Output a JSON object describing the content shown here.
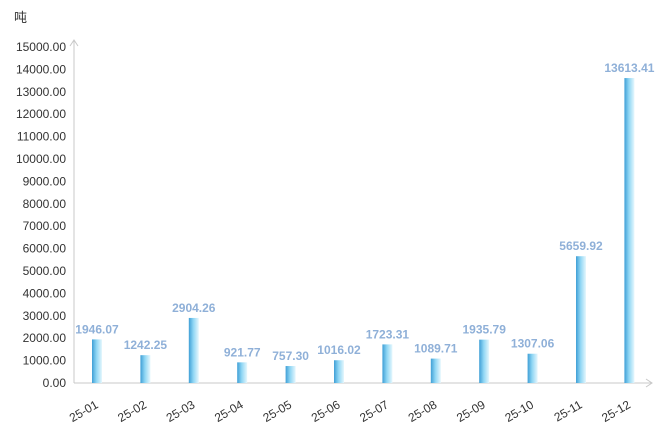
{
  "chart_data": {
    "type": "bar",
    "unit_label": "吨",
    "categories": [
      "25-01",
      "25-02",
      "25-03",
      "25-04",
      "25-05",
      "25-06",
      "25-07",
      "25-08",
      "25-09",
      "25-10",
      "25-11",
      "25-12"
    ],
    "values": [
      1946.07,
      1242.25,
      2904.26,
      921.77,
      757.3,
      1016.02,
      1723.31,
      1089.71,
      1935.79,
      1307.06,
      5659.92,
      13613.41
    ],
    "data_labels": [
      "1946.07",
      "1242.25",
      "2904.26",
      "921.77",
      "757.30",
      "1016.02",
      "1723.31",
      "1089.71",
      "1935.79",
      "1307.06",
      "5659.92",
      "13613.41"
    ],
    "ylim": [
      0,
      15000
    ],
    "yticks": [
      "0.00",
      "1000.00",
      "2000.00",
      "3000.00",
      "4000.00",
      "5000.00",
      "6000.00",
      "7000.00",
      "8000.00",
      "9000.00",
      "10000.00",
      "11000.00",
      "12000.00",
      "13000.00",
      "14000.00",
      "15000.00"
    ],
    "ytick_values": [
      0,
      1000,
      2000,
      3000,
      4000,
      5000,
      6000,
      7000,
      8000,
      9000,
      10000,
      11000,
      12000,
      13000,
      14000,
      15000
    ],
    "grid": false,
    "legend": "none",
    "colors": {
      "bar_light": "#e6f7fd",
      "bar_mid": "#8fd6f4",
      "bar_dark": "#3f9fd6",
      "label": "#8fb0d8",
      "axis": "#c8c8c8",
      "text": "#333333"
    }
  }
}
